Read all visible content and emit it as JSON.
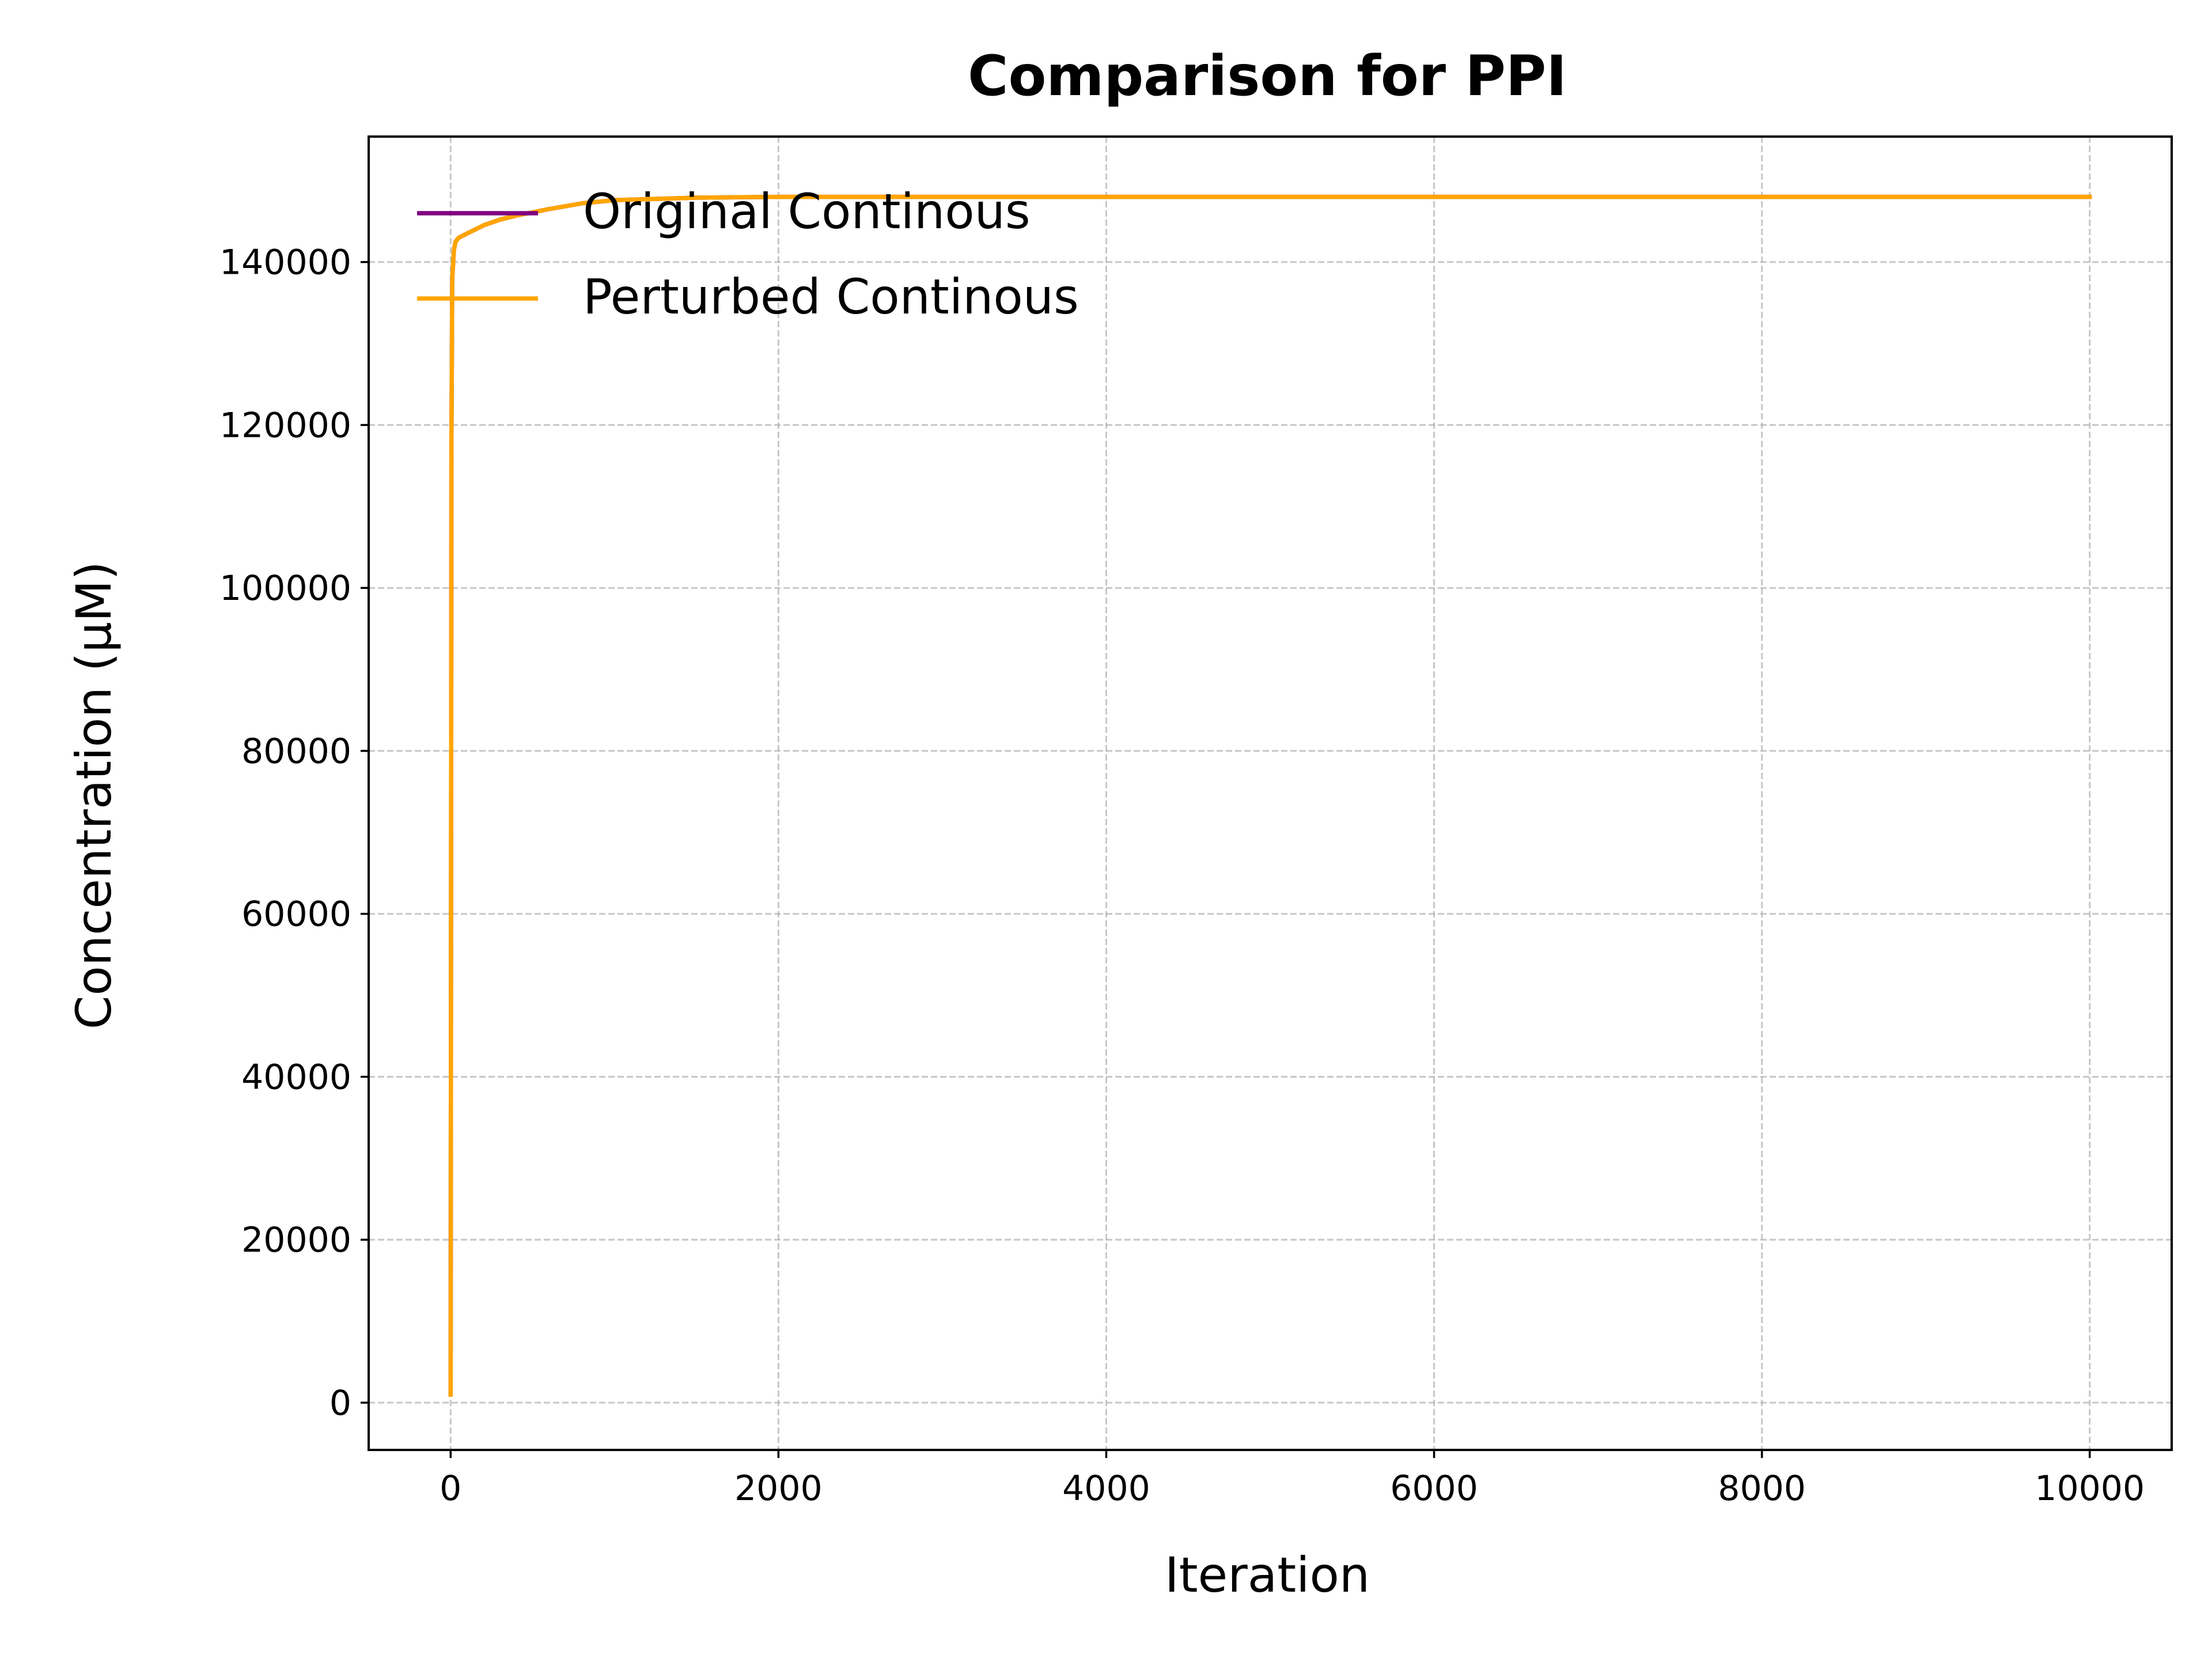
{
  "chart_data": {
    "type": "line",
    "title": "Comparison for PPI",
    "xlabel": "Iteration",
    "ylabel": "Concentration (μM)",
    "xlim": [
      -500,
      10500
    ],
    "ylim": [
      -5800,
      155400
    ],
    "x_ticks": [
      0,
      2000,
      4000,
      6000,
      8000,
      10000
    ],
    "y_ticks": [
      0,
      20000,
      40000,
      60000,
      80000,
      100000,
      120000,
      140000
    ],
    "grid": true,
    "grid_style": "dashed",
    "legend": "upper-left",
    "series": [
      {
        "name": "Original Continous",
        "color": "#800080",
        "x": [
          0,
          5,
          10,
          20,
          30,
          50,
          80,
          100,
          150,
          200,
          300,
          400,
          500,
          600,
          800,
          1000,
          1500,
          2000,
          3000,
          5000,
          10000
        ],
        "y": [
          1000,
          118000,
          138000,
          141500,
          142500,
          143000,
          143300,
          143500,
          144000,
          144500,
          145200,
          145700,
          146100,
          146500,
          147200,
          147600,
          147900,
          148000,
          148000,
          148000,
          148000
        ]
      },
      {
        "name": "Perturbed Continous",
        "color": "#FFA500",
        "x": [
          0,
          5,
          10,
          20,
          30,
          50,
          80,
          100,
          150,
          200,
          300,
          400,
          500,
          600,
          800,
          1000,
          1500,
          2000,
          3000,
          5000,
          10000
        ],
        "y": [
          1000,
          118000,
          138000,
          141500,
          142500,
          143000,
          143300,
          143500,
          144000,
          144500,
          145200,
          145700,
          146100,
          146500,
          147200,
          147600,
          147900,
          148000,
          148000,
          148000,
          148000
        ]
      }
    ]
  }
}
